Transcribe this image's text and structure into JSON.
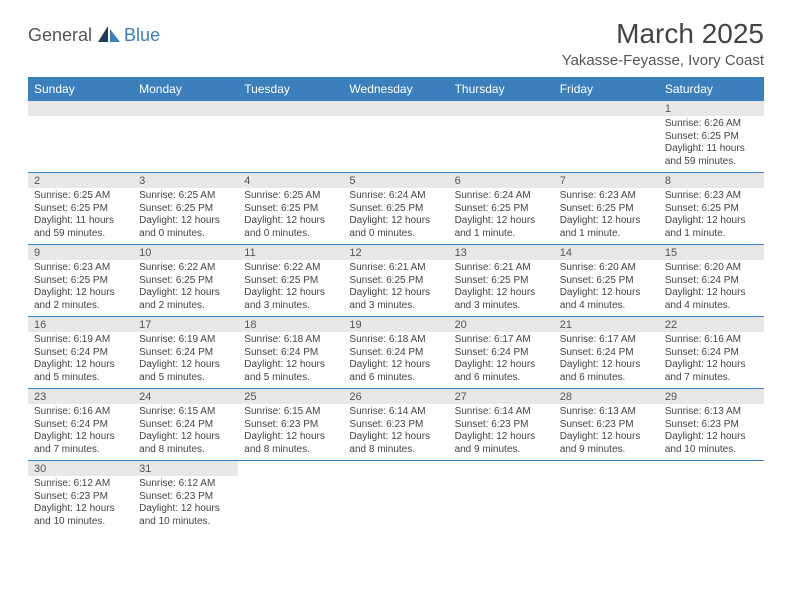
{
  "brand": {
    "part1": "General",
    "part2": "Blue"
  },
  "title": "March 2025",
  "location": "Yakasse-Feyasse, Ivory Coast",
  "weekdays": [
    "Sunday",
    "Monday",
    "Tuesday",
    "Wednesday",
    "Thursday",
    "Friday",
    "Saturday"
  ],
  "colors": {
    "header_bg": "#3b7fbd",
    "header_text": "#ffffff",
    "daynum_bg": "#e8e8e8",
    "border": "#3b7fbd",
    "body_text": "#444444",
    "background": "#ffffff"
  },
  "weeks": [
    [
      {
        "blank": true
      },
      {
        "blank": true
      },
      {
        "blank": true
      },
      {
        "blank": true
      },
      {
        "blank": true
      },
      {
        "blank": true
      },
      {
        "n": "1",
        "sunrise": "Sunrise: 6:26 AM",
        "sunset": "Sunset: 6:25 PM",
        "daylight": "Daylight: 11 hours and 59 minutes."
      }
    ],
    [
      {
        "n": "2",
        "sunrise": "Sunrise: 6:25 AM",
        "sunset": "Sunset: 6:25 PM",
        "daylight": "Daylight: 11 hours and 59 minutes."
      },
      {
        "n": "3",
        "sunrise": "Sunrise: 6:25 AM",
        "sunset": "Sunset: 6:25 PM",
        "daylight": "Daylight: 12 hours and 0 minutes."
      },
      {
        "n": "4",
        "sunrise": "Sunrise: 6:25 AM",
        "sunset": "Sunset: 6:25 PM",
        "daylight": "Daylight: 12 hours and 0 minutes."
      },
      {
        "n": "5",
        "sunrise": "Sunrise: 6:24 AM",
        "sunset": "Sunset: 6:25 PM",
        "daylight": "Daylight: 12 hours and 0 minutes."
      },
      {
        "n": "6",
        "sunrise": "Sunrise: 6:24 AM",
        "sunset": "Sunset: 6:25 PM",
        "daylight": "Daylight: 12 hours and 1 minute."
      },
      {
        "n": "7",
        "sunrise": "Sunrise: 6:23 AM",
        "sunset": "Sunset: 6:25 PM",
        "daylight": "Daylight: 12 hours and 1 minute."
      },
      {
        "n": "8",
        "sunrise": "Sunrise: 6:23 AM",
        "sunset": "Sunset: 6:25 PM",
        "daylight": "Daylight: 12 hours and 1 minute."
      }
    ],
    [
      {
        "n": "9",
        "sunrise": "Sunrise: 6:23 AM",
        "sunset": "Sunset: 6:25 PM",
        "daylight": "Daylight: 12 hours and 2 minutes."
      },
      {
        "n": "10",
        "sunrise": "Sunrise: 6:22 AM",
        "sunset": "Sunset: 6:25 PM",
        "daylight": "Daylight: 12 hours and 2 minutes."
      },
      {
        "n": "11",
        "sunrise": "Sunrise: 6:22 AM",
        "sunset": "Sunset: 6:25 PM",
        "daylight": "Daylight: 12 hours and 3 minutes."
      },
      {
        "n": "12",
        "sunrise": "Sunrise: 6:21 AM",
        "sunset": "Sunset: 6:25 PM",
        "daylight": "Daylight: 12 hours and 3 minutes."
      },
      {
        "n": "13",
        "sunrise": "Sunrise: 6:21 AM",
        "sunset": "Sunset: 6:25 PM",
        "daylight": "Daylight: 12 hours and 3 minutes."
      },
      {
        "n": "14",
        "sunrise": "Sunrise: 6:20 AM",
        "sunset": "Sunset: 6:25 PM",
        "daylight": "Daylight: 12 hours and 4 minutes."
      },
      {
        "n": "15",
        "sunrise": "Sunrise: 6:20 AM",
        "sunset": "Sunset: 6:24 PM",
        "daylight": "Daylight: 12 hours and 4 minutes."
      }
    ],
    [
      {
        "n": "16",
        "sunrise": "Sunrise: 6:19 AM",
        "sunset": "Sunset: 6:24 PM",
        "daylight": "Daylight: 12 hours and 5 minutes."
      },
      {
        "n": "17",
        "sunrise": "Sunrise: 6:19 AM",
        "sunset": "Sunset: 6:24 PM",
        "daylight": "Daylight: 12 hours and 5 minutes."
      },
      {
        "n": "18",
        "sunrise": "Sunrise: 6:18 AM",
        "sunset": "Sunset: 6:24 PM",
        "daylight": "Daylight: 12 hours and 5 minutes."
      },
      {
        "n": "19",
        "sunrise": "Sunrise: 6:18 AM",
        "sunset": "Sunset: 6:24 PM",
        "daylight": "Daylight: 12 hours and 6 minutes."
      },
      {
        "n": "20",
        "sunrise": "Sunrise: 6:17 AM",
        "sunset": "Sunset: 6:24 PM",
        "daylight": "Daylight: 12 hours and 6 minutes."
      },
      {
        "n": "21",
        "sunrise": "Sunrise: 6:17 AM",
        "sunset": "Sunset: 6:24 PM",
        "daylight": "Daylight: 12 hours and 6 minutes."
      },
      {
        "n": "22",
        "sunrise": "Sunrise: 6:16 AM",
        "sunset": "Sunset: 6:24 PM",
        "daylight": "Daylight: 12 hours and 7 minutes."
      }
    ],
    [
      {
        "n": "23",
        "sunrise": "Sunrise: 6:16 AM",
        "sunset": "Sunset: 6:24 PM",
        "daylight": "Daylight: 12 hours and 7 minutes."
      },
      {
        "n": "24",
        "sunrise": "Sunrise: 6:15 AM",
        "sunset": "Sunset: 6:24 PM",
        "daylight": "Daylight: 12 hours and 8 minutes."
      },
      {
        "n": "25",
        "sunrise": "Sunrise: 6:15 AM",
        "sunset": "Sunset: 6:23 PM",
        "daylight": "Daylight: 12 hours and 8 minutes."
      },
      {
        "n": "26",
        "sunrise": "Sunrise: 6:14 AM",
        "sunset": "Sunset: 6:23 PM",
        "daylight": "Daylight: 12 hours and 8 minutes."
      },
      {
        "n": "27",
        "sunrise": "Sunrise: 6:14 AM",
        "sunset": "Sunset: 6:23 PM",
        "daylight": "Daylight: 12 hours and 9 minutes."
      },
      {
        "n": "28",
        "sunrise": "Sunrise: 6:13 AM",
        "sunset": "Sunset: 6:23 PM",
        "daylight": "Daylight: 12 hours and 9 minutes."
      },
      {
        "n": "29",
        "sunrise": "Sunrise: 6:13 AM",
        "sunset": "Sunset: 6:23 PM",
        "daylight": "Daylight: 12 hours and 10 minutes."
      }
    ],
    [
      {
        "n": "30",
        "sunrise": "Sunrise: 6:12 AM",
        "sunset": "Sunset: 6:23 PM",
        "daylight": "Daylight: 12 hours and 10 minutes."
      },
      {
        "n": "31",
        "sunrise": "Sunrise: 6:12 AM",
        "sunset": "Sunset: 6:23 PM",
        "daylight": "Daylight: 12 hours and 10 minutes."
      },
      {
        "blank": true
      },
      {
        "blank": true
      },
      {
        "blank": true
      },
      {
        "blank": true
      },
      {
        "blank": true
      }
    ]
  ]
}
